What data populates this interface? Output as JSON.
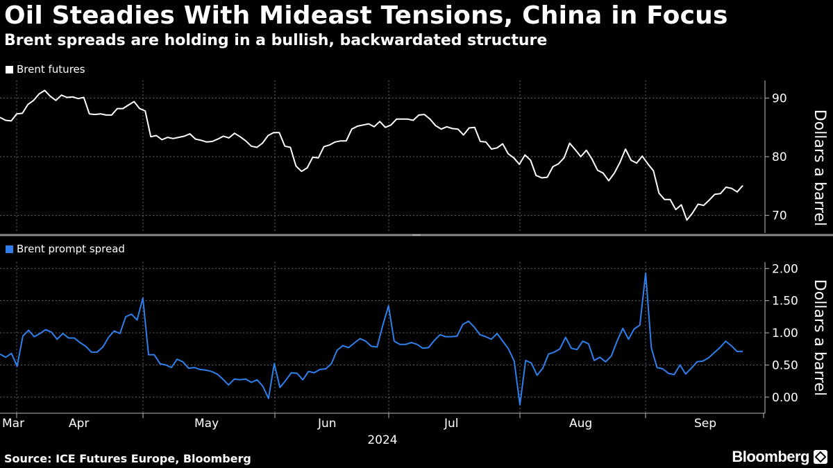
{
  "header": {
    "title": "Oil Steadies With Mideast Tensions, China in Focus",
    "subtitle": "Brent spreads are holding in a bullish, backwardated structure"
  },
  "footer": {
    "source": "Source: ICE Futures Europe, Bloomberg",
    "brand": "Bloomberg"
  },
  "colors": {
    "background": "#000000",
    "futures_line": "#ffffff",
    "spread_line": "#2f80ed",
    "grid": "#6a6a6a"
  },
  "chart_data": [
    {
      "type": "line",
      "title": "",
      "ylabel": "Dollars a barrel",
      "ylim": [
        67,
        93
      ],
      "yticks": [
        70,
        80,
        90
      ],
      "ytick_labels": [
        "70",
        "80",
        "90"
      ],
      "grid": true,
      "legend_position": "top-left",
      "series": [
        {
          "name": "Brent futures",
          "color": "#ffffff",
          "values": [
            86.7,
            86.2,
            86.1,
            87.3,
            87.4,
            88.9,
            89.6,
            90.7,
            91.3,
            90.3,
            89.6,
            90.5,
            90.1,
            90.2,
            89.9,
            90.1,
            87.3,
            87.2,
            87.3,
            87.1,
            87.1,
            88.2,
            88.2,
            88.8,
            89.4,
            88.2,
            87.8,
            83.4,
            83.6,
            82.9,
            83.3,
            83.1,
            83.3,
            83.5,
            83.9,
            83.0,
            82.8,
            82.5,
            82.6,
            83.0,
            83.5,
            83.2,
            84.0,
            83.4,
            82.7,
            81.8,
            81.6,
            82.3,
            83.6,
            84.1,
            84.1,
            81.8,
            81.6,
            78.4,
            77.5,
            78.1,
            79.9,
            79.8,
            81.7,
            82.0,
            82.5,
            82.7,
            82.7,
            84.7,
            85.2,
            85.4,
            85.6,
            85.1,
            86.0,
            85.0,
            85.4,
            86.4,
            86.4,
            86.4,
            86.2,
            87.1,
            87.2,
            86.4,
            85.3,
            84.7,
            85.1,
            84.8,
            84.7,
            83.7,
            84.9,
            85.0,
            82.6,
            82.5,
            81.3,
            81.5,
            82.2,
            80.5,
            79.8,
            78.7,
            80.3,
            79.4,
            76.8,
            76.4,
            76.5,
            78.3,
            78.8,
            79.8,
            82.3,
            81.2,
            80.0,
            81.1,
            79.6,
            77.7,
            77.2,
            75.9,
            77.2,
            79.0,
            81.3,
            79.4,
            78.9,
            80.1,
            78.8,
            77.6,
            73.8,
            72.7,
            72.7,
            71.0,
            71.8,
            69.2,
            70.4,
            71.9,
            71.7,
            72.6,
            73.6,
            73.7,
            74.8,
            74.6,
            74.0,
            75.1
          ]
        }
      ]
    },
    {
      "type": "line",
      "title": "",
      "xlabel": "2024",
      "ylabel": "Dollars a barrel",
      "ylim": [
        -0.25,
        2.1
      ],
      "yticks": [
        0.0,
        0.5,
        1.0,
        1.5,
        2.0
      ],
      "ytick_labels": [
        "0.00",
        "0.50",
        "1.00",
        "1.50",
        "2.00"
      ],
      "x_month_labels": [
        "Mar",
        "Apr",
        "May",
        "Jun",
        "Jul",
        "Aug",
        "Sep"
      ],
      "grid": true,
      "legend_position": "top-left",
      "series": [
        {
          "name": "Brent prompt spread",
          "color": "#2f80ed",
          "values": [
            0.67,
            0.62,
            0.68,
            0.48,
            0.95,
            1.04,
            0.94,
            0.99,
            1.05,
            1.01,
            0.9,
            0.99,
            0.92,
            0.92,
            0.85,
            0.79,
            0.7,
            0.7,
            0.78,
            0.93,
            1.03,
            0.99,
            1.25,
            1.29,
            1.2,
            1.54,
            0.66,
            0.66,
            0.52,
            0.5,
            0.46,
            0.59,
            0.55,
            0.45,
            0.46,
            0.43,
            0.42,
            0.4,
            0.36,
            0.28,
            0.19,
            0.28,
            0.27,
            0.28,
            0.23,
            0.27,
            0.17,
            -0.02,
            0.52,
            0.15,
            0.26,
            0.38,
            0.37,
            0.27,
            0.4,
            0.38,
            0.43,
            0.44,
            0.52,
            0.73,
            0.8,
            0.77,
            0.84,
            0.91,
            0.87,
            0.79,
            0.78,
            1.12,
            1.42,
            0.87,
            0.82,
            0.82,
            0.85,
            0.82,
            0.76,
            0.77,
            0.88,
            0.97,
            0.94,
            0.94,
            0.95,
            1.13,
            1.18,
            1.09,
            0.97,
            0.94,
            0.9,
            0.99,
            0.87,
            0.75,
            0.56,
            -0.12,
            0.57,
            0.53,
            0.34,
            0.45,
            0.67,
            0.7,
            0.75,
            0.93,
            0.76,
            0.74,
            0.87,
            0.83,
            0.57,
            0.62,
            0.55,
            0.64,
            0.87,
            1.07,
            0.9,
            1.06,
            1.12,
            1.93,
            0.77,
            0.46,
            0.44,
            0.37,
            0.35,
            0.5,
            0.36,
            0.45,
            0.55,
            0.56,
            0.61,
            0.69,
            0.77,
            0.87,
            0.8,
            0.71,
            0.71
          ]
        }
      ]
    }
  ]
}
